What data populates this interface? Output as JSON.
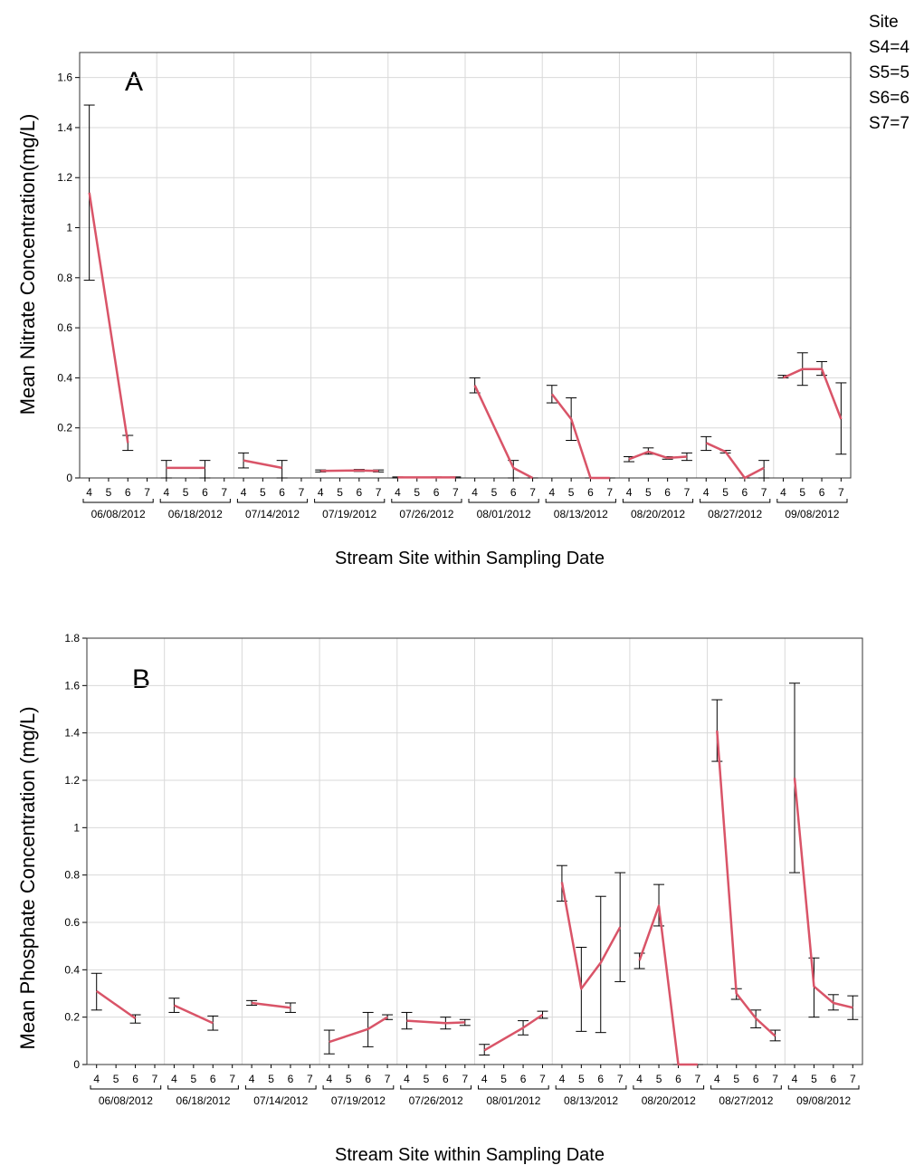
{
  "legend": {
    "title": "Site",
    "items": [
      "S4=4",
      "S5=5",
      "S6=6",
      "S7=7"
    ]
  },
  "colors": {
    "line": "#d95468",
    "grid": "#d9d9d9",
    "errorbar": "#000000"
  },
  "chart_data": [
    {
      "type": "line",
      "panel_label": "A",
      "ylabel": "Mean Nitrate Concentration(mg/L)",
      "xlabel": "Stream Site within Sampling Date",
      "ylim": [
        0,
        1.7
      ],
      "yticks": [
        "0",
        "0.2",
        "0.4",
        "0.6",
        "0.8",
        "1",
        "1.2",
        "1.4",
        "1.6"
      ],
      "grid": true,
      "sites": [
        "4",
        "5",
        "6",
        "7"
      ],
      "groups": [
        {
          "date": "06/08/2012",
          "mean": [
            1.14,
            null,
            0.14,
            null
          ],
          "low": [
            0.79,
            null,
            0.11,
            null
          ],
          "high": [
            1.49,
            null,
            0.17,
            null
          ]
        },
        {
          "date": "06/18/2012",
          "mean": [
            0.04,
            null,
            0.04,
            null
          ],
          "low": [
            0.0,
            null,
            0.0,
            null
          ],
          "high": [
            0.07,
            null,
            0.07,
            null
          ]
        },
        {
          "date": "07/14/2012",
          "mean": [
            0.07,
            null,
            0.04,
            null
          ],
          "low": [
            0.04,
            null,
            0.0,
            null
          ],
          "high": [
            0.1,
            null,
            0.07,
            null
          ]
        },
        {
          "date": "07/19/2012",
          "mean": [
            0.028,
            null,
            0.03,
            0.028
          ],
          "low": [
            0.024,
            null,
            0.026,
            0.024
          ],
          "high": [
            0.032,
            null,
            0.034,
            0.032
          ]
        },
        {
          "date": "07/26/2012",
          "mean": [
            0.002,
            null,
            0.002,
            0.002
          ],
          "low": [
            0.0,
            null,
            0.0,
            0.0
          ],
          "high": [
            0.004,
            null,
            0.004,
            0.004
          ]
        },
        {
          "date": "08/01/2012",
          "mean": [
            0.37,
            null,
            0.04,
            0.0
          ],
          "low": [
            0.34,
            null,
            0.0,
            0.0
          ],
          "high": [
            0.4,
            null,
            0.07,
            0.0
          ]
        },
        {
          "date": "08/13/2012",
          "mean": [
            0.335,
            0.235,
            0.0,
            0.0
          ],
          "low": [
            0.3,
            0.15,
            0.0,
            0.0
          ],
          "high": [
            0.37,
            0.32,
            0.0,
            0.0
          ]
        },
        {
          "date": "08/20/2012",
          "mean": [
            0.075,
            0.105,
            0.08,
            0.085
          ],
          "low": [
            0.065,
            0.095,
            0.075,
            0.07
          ],
          "high": [
            0.085,
            0.12,
            0.085,
            0.1
          ]
        },
        {
          "date": "08/27/2012",
          "mean": [
            0.14,
            0.105,
            0.0,
            0.04
          ],
          "low": [
            0.11,
            0.1,
            0.0,
            0.0
          ],
          "high": [
            0.165,
            0.11,
            0.0,
            0.07
          ]
        },
        {
          "date": "09/08/2012",
          "mean": [
            0.4,
            0.435,
            0.435,
            0.235
          ],
          "low": [
            0.4,
            0.37,
            0.41,
            0.095
          ],
          "high": [
            0.41,
            0.5,
            0.465,
            0.38
          ]
        }
      ]
    },
    {
      "type": "line",
      "panel_label": "B",
      "ylabel": "Mean Phosphate Concentration (mg/L)",
      "xlabel": "Stream Site within Sampling Date",
      "ylim": [
        0,
        1.8
      ],
      "yticks": [
        "0",
        "0.2",
        "0.4",
        "0.6",
        "0.8",
        "1",
        "1.2",
        "1.4",
        "1.6",
        "1.8"
      ],
      "grid": true,
      "sites": [
        "4",
        "5",
        "6",
        "7"
      ],
      "groups": [
        {
          "date": "06/08/2012",
          "mean": [
            0.31,
            null,
            0.195,
            null
          ],
          "low": [
            0.23,
            null,
            0.175,
            null
          ],
          "high": [
            0.385,
            null,
            0.21,
            null
          ]
        },
        {
          "date": "06/18/2012",
          "mean": [
            0.25,
            null,
            0.175,
            null
          ],
          "low": [
            0.22,
            null,
            0.145,
            null
          ],
          "high": [
            0.28,
            null,
            0.205,
            null
          ]
        },
        {
          "date": "07/14/2012",
          "mean": [
            0.26,
            null,
            0.24,
            null
          ],
          "low": [
            0.25,
            null,
            0.22,
            null
          ],
          "high": [
            0.27,
            null,
            0.26,
            null
          ]
        },
        {
          "date": "07/19/2012",
          "mean": [
            0.095,
            null,
            0.15,
            0.2
          ],
          "low": [
            0.045,
            null,
            0.075,
            0.19
          ],
          "high": [
            0.145,
            null,
            0.22,
            0.21
          ]
        },
        {
          "date": "07/26/2012",
          "mean": [
            0.185,
            null,
            0.175,
            0.178
          ],
          "low": [
            0.15,
            null,
            0.15,
            0.165
          ],
          "high": [
            0.22,
            null,
            0.2,
            0.19
          ]
        },
        {
          "date": "08/01/2012",
          "mean": [
            0.06,
            null,
            0.155,
            0.21
          ],
          "low": [
            0.04,
            null,
            0.125,
            0.195
          ],
          "high": [
            0.085,
            null,
            0.185,
            0.225
          ]
        },
        {
          "date": "08/13/2012",
          "mean": [
            0.77,
            0.32,
            0.43,
            0.58
          ],
          "low": [
            0.69,
            0.14,
            0.135,
            0.35
          ],
          "high": [
            0.84,
            0.495,
            0.71,
            0.81
          ]
        },
        {
          "date": "08/20/2012",
          "mean": [
            0.44,
            0.67,
            0.0,
            0.0
          ],
          "low": [
            0.405,
            0.585,
            0.0,
            0.0
          ],
          "high": [
            0.47,
            0.76,
            0.0,
            0.0
          ]
        },
        {
          "date": "08/27/2012",
          "mean": [
            1.41,
            0.3,
            0.195,
            0.12
          ],
          "low": [
            1.28,
            0.275,
            0.155,
            0.1
          ],
          "high": [
            1.54,
            0.32,
            0.23,
            0.145
          ]
        },
        {
          "date": "09/08/2012",
          "mean": [
            1.21,
            0.33,
            0.26,
            0.24
          ],
          "low": [
            0.81,
            0.2,
            0.23,
            0.19
          ],
          "high": [
            1.61,
            0.45,
            0.295,
            0.29
          ]
        }
      ]
    }
  ]
}
